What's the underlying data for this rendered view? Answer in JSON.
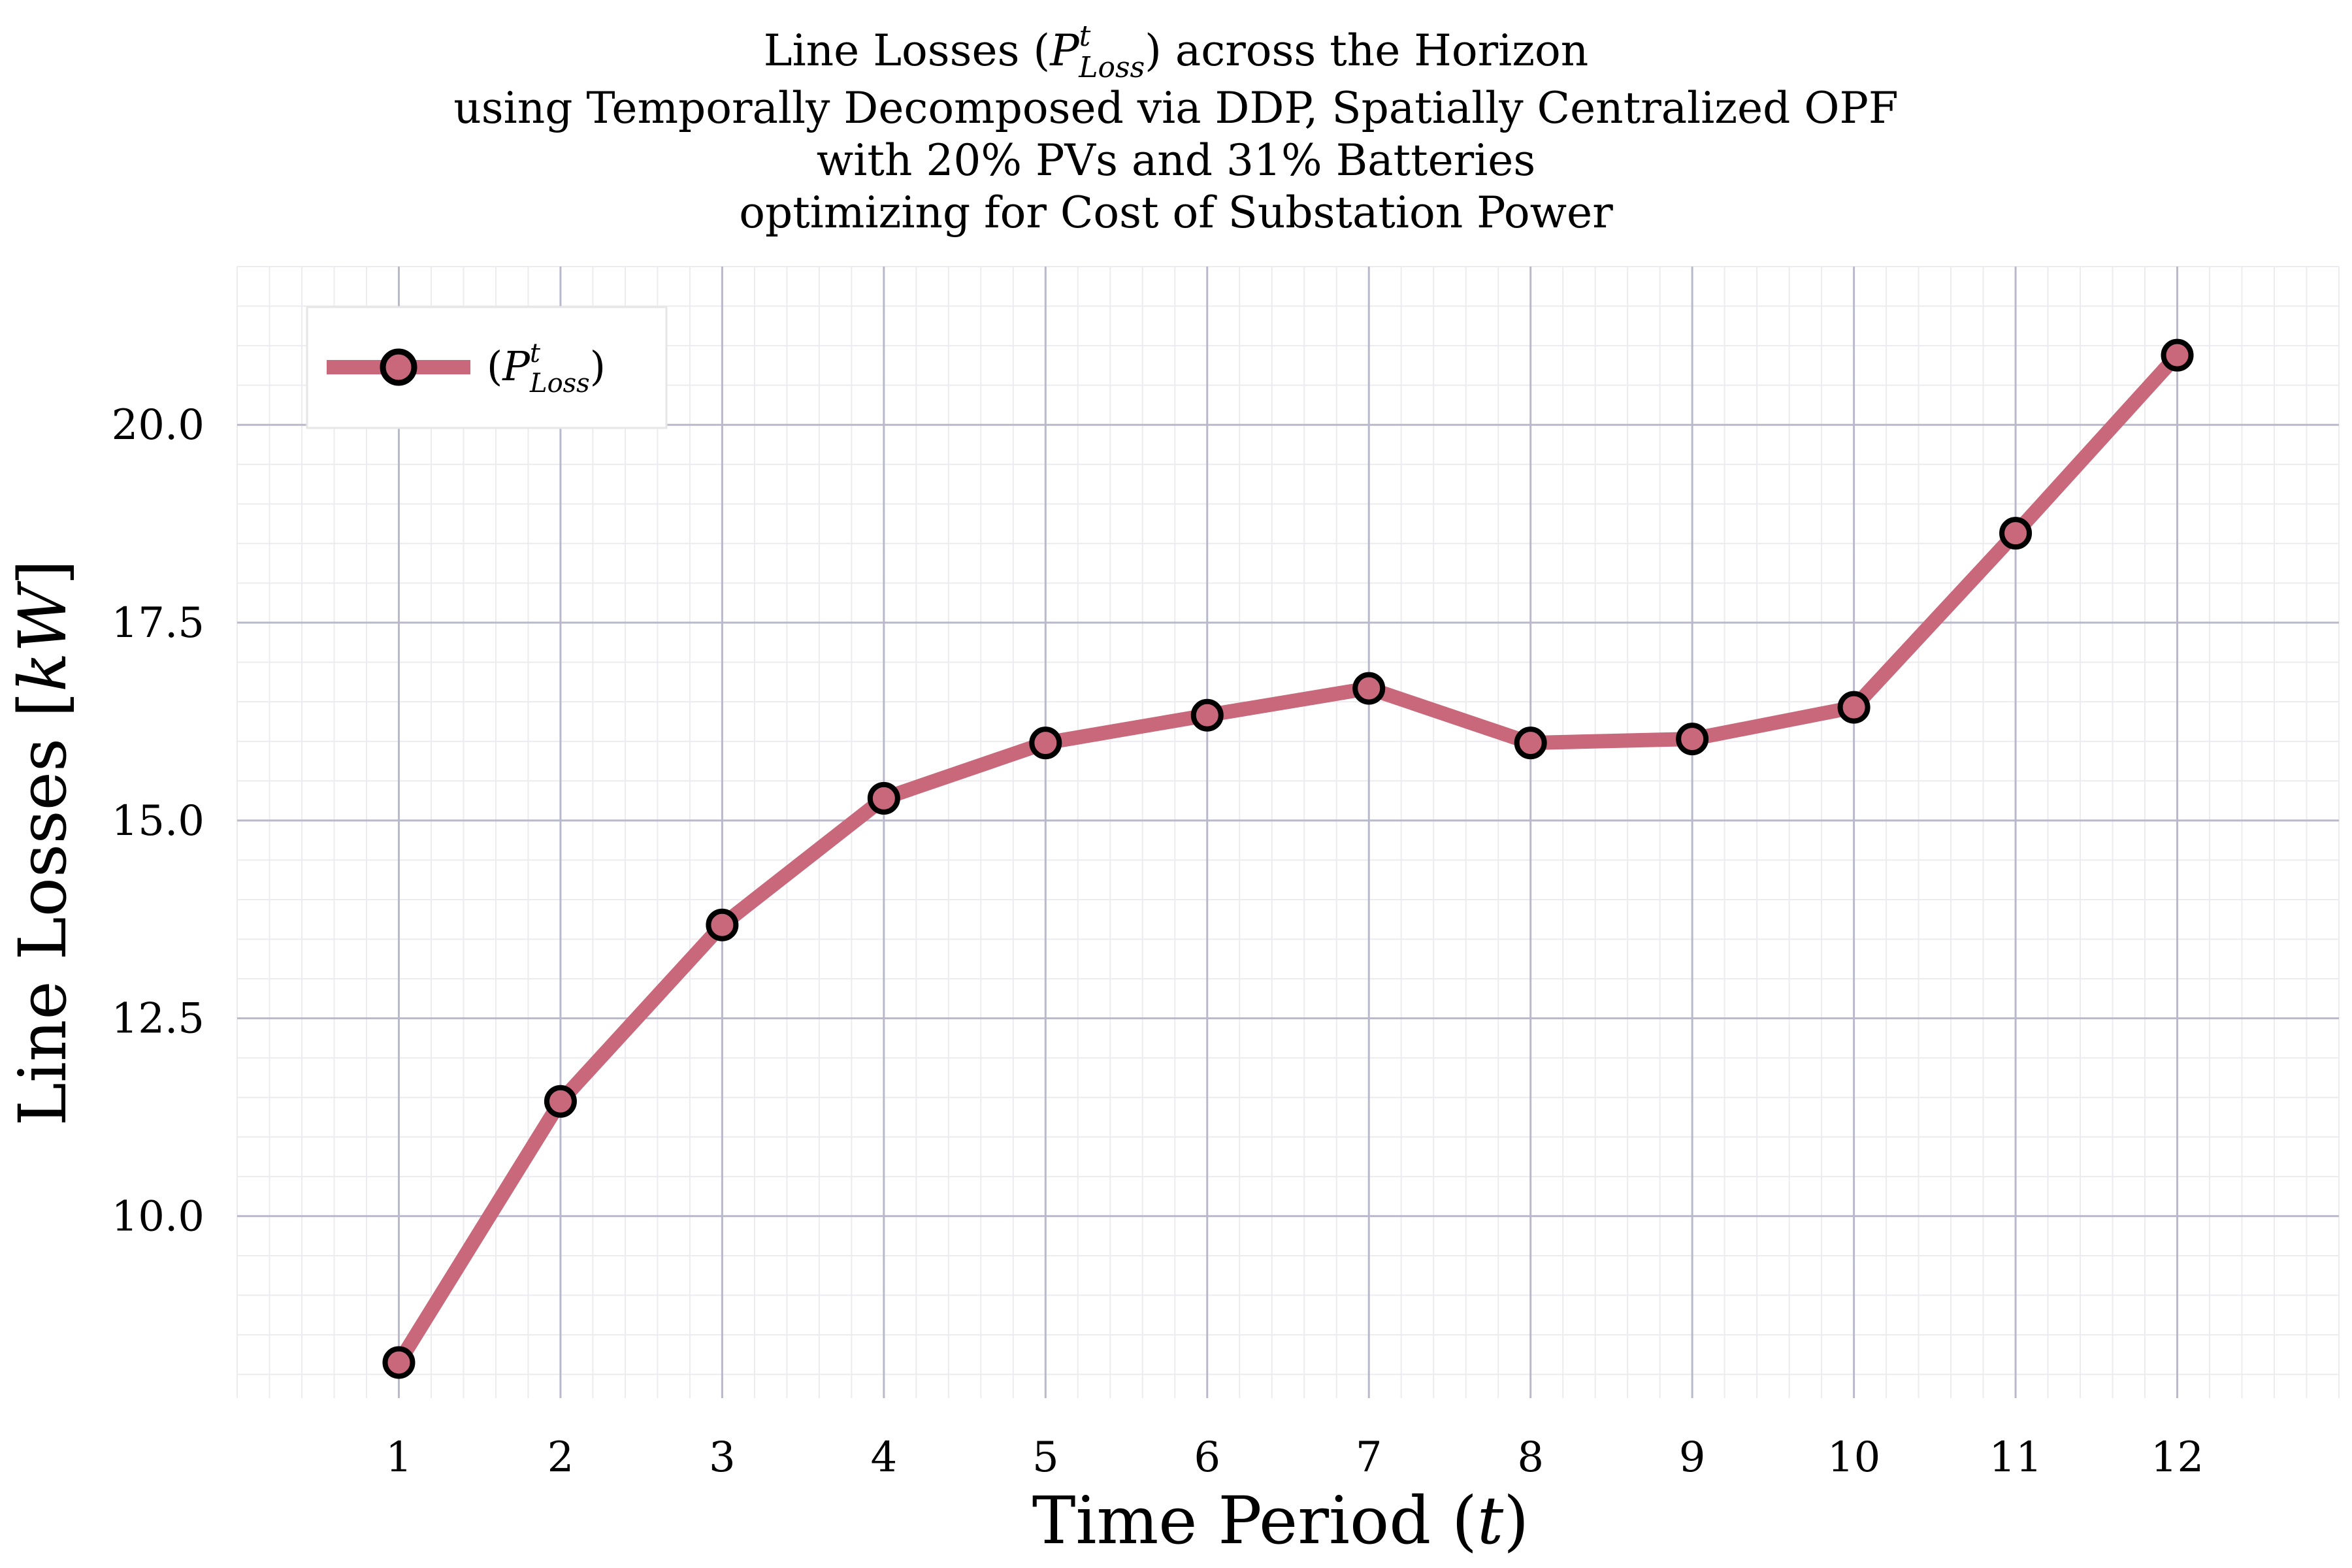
{
  "chart_data": {
    "type": "line",
    "title": {
      "line1_prefix": "Line Losses (",
      "line1_symbol": "P",
      "line1_sup": "t",
      "line1_sub": "Loss",
      "line1_suffix": ") across the Horizon",
      "line2": "using Temporally Decomposed via DDP, Spatially Centralized OPF",
      "line3": "with 20% PVs and 31% Batteries",
      "line4": "optimizing for Cost of Substation Power"
    },
    "xlabel": {
      "prefix": "Time Period (",
      "var": "t",
      "suffix": ")"
    },
    "ylabel": {
      "prefix": "Line Losses [",
      "var": "kW",
      "suffix": "]"
    },
    "x": [
      1,
      2,
      3,
      4,
      5,
      6,
      7,
      8,
      9,
      10,
      11,
      12
    ],
    "x_tick_labels": [
      "1",
      "2",
      "3",
      "4",
      "5",
      "6",
      "7",
      "8",
      "9",
      "10",
      "11",
      "12"
    ],
    "y_ticks": [
      10.0,
      12.5,
      15.0,
      17.5,
      20.0
    ],
    "y_tick_labels": [
      "10.0",
      "12.5",
      "15.0",
      "17.5",
      "20.0"
    ],
    "xlim": [
      0.0,
      13.0
    ],
    "ylim": [
      7.7,
      22.0
    ],
    "grid": true,
    "legend_position": "top-left",
    "series": [
      {
        "name_prefix": "(",
        "name_symbol": "P",
        "name_sup": "t",
        "name_sub": "Loss",
        "name_suffix": ")",
        "values": [
          8.15,
          11.45,
          13.68,
          15.28,
          15.98,
          16.33,
          16.67,
          15.98,
          16.03,
          16.43,
          18.63,
          20.88
        ],
        "color": "#c8687a",
        "marker_edge": "#000000"
      }
    ]
  }
}
